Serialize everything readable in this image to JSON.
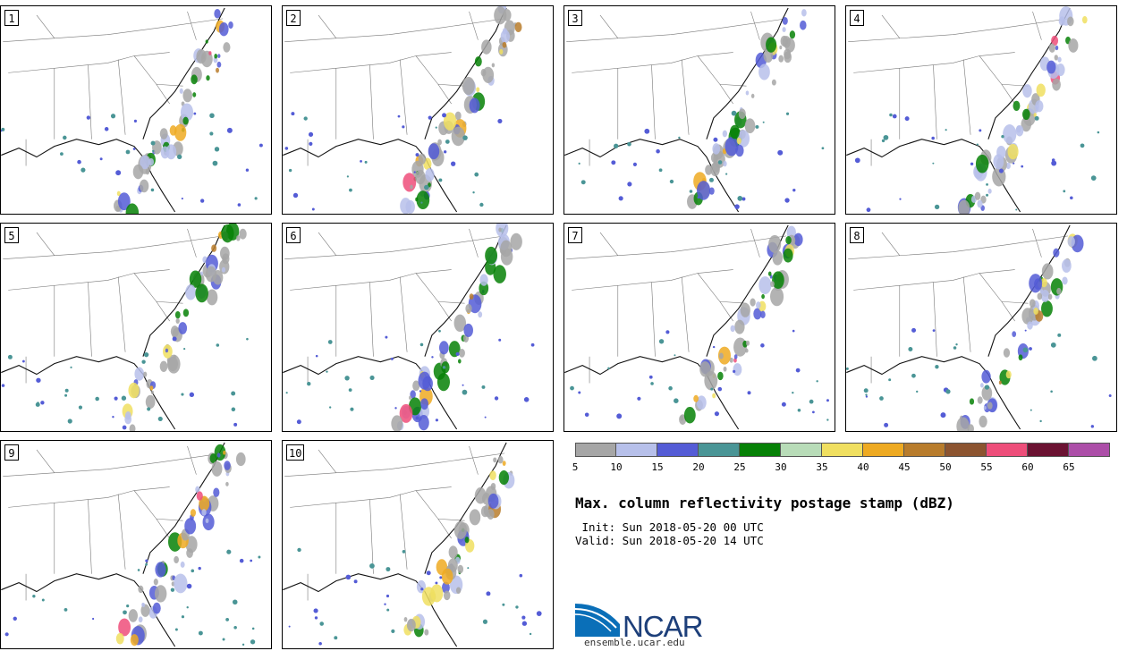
{
  "panels": [
    {
      "label": "1",
      "seed": 11
    },
    {
      "label": "2",
      "seed": 23
    },
    {
      "label": "3",
      "seed": 37
    },
    {
      "label": "4",
      "seed": 41
    },
    {
      "label": "5",
      "seed": 53
    },
    {
      "label": "6",
      "seed": 67
    },
    {
      "label": "7",
      "seed": 71
    },
    {
      "label": "8",
      "seed": 83
    },
    {
      "label": "9",
      "seed": 97
    },
    {
      "label": "10",
      "seed": 101
    }
  ],
  "colorbar": {
    "colors": [
      "#a6a6a6",
      "#b7c0ea",
      "#545cd6",
      "#4a9596",
      "#068106",
      "#b8dcb8",
      "#f0df60",
      "#eeaa22",
      "#b87c2c",
      "#8c5430",
      "#ee4e7a",
      "#6b1232",
      "#ac4ea8"
    ],
    "tick_labels": [
      "5",
      "10",
      "15",
      "20",
      "25",
      "30",
      "35",
      "40",
      "45",
      "50",
      "55",
      "60",
      "65"
    ]
  },
  "title": "Max. column reflectivity postage stamp (dBZ)",
  "init": " Init: Sun 2018-05-20 00 UTC",
  "valid": "Valid: Sun 2018-05-20 14 UTC",
  "logo": {
    "wordmark": "NCAR",
    "url": "ensemble.ucar.edu",
    "colors": {
      "blue": "#0a6fb8",
      "dark": "#1d3f7a"
    }
  }
}
